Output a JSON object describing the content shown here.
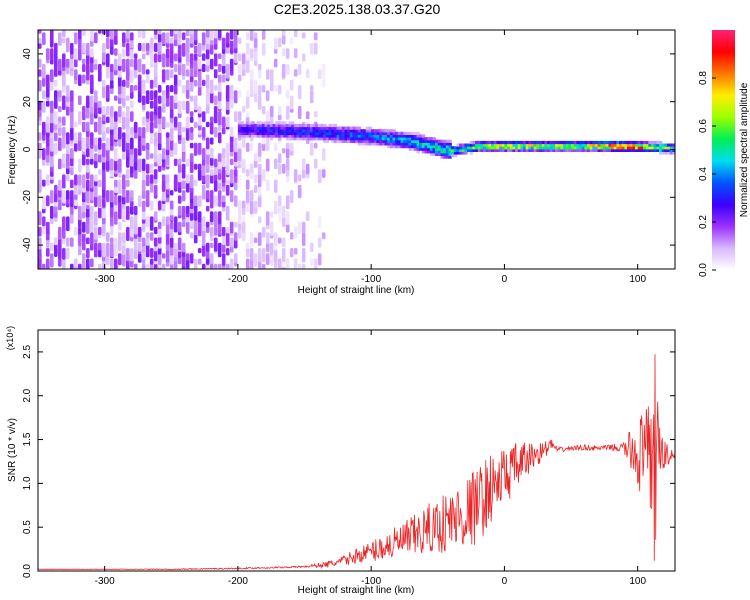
{
  "title": "C2E3.2025.138.03.37.G20",
  "chart_data": [
    {
      "type": "heatmap",
      "xlabel": "Height of straight line (km)",
      "ylabel": "Frequency (Hz)",
      "xlim": [
        -350,
        128
      ],
      "ylim": [
        -50,
        50
      ],
      "x_ticks": [
        -300,
        -200,
        -100,
        0,
        100
      ],
      "x_tick_labels": [
        "-300",
        "-200",
        "-100",
        "0",
        "100"
      ],
      "y_ticks": [
        -40,
        -20,
        0,
        20,
        40
      ],
      "y_tick_labels": [
        "-40",
        "-20",
        "0",
        "20",
        "40"
      ],
      "colorbar": {
        "label": "Normalized spectral amplitude",
        "range": [
          0,
          1
        ],
        "ticks": [
          0.0,
          0.2,
          0.4,
          0.6,
          0.8
        ],
        "tick_labels": [
          "0.0",
          "0.2",
          "0.4",
          "0.6",
          "0.8"
        ],
        "colors": [
          "#ffffff",
          "#d8b8ff",
          "#9b30ff",
          "#3a00ff",
          "#0055ff",
          "#00ddee",
          "#00ee55",
          "#9cff00",
          "#ffee00",
          "#ff7700",
          "#ff0000",
          "#ff2277"
        ]
      },
      "regions": [
        {
          "x": [
            -350,
            -200
          ],
          "freq": [
            -50,
            50
          ],
          "amplitude": [
            0.05,
            0.22
          ]
        },
        {
          "x": [
            -200,
            -135
          ],
          "freq": [
            -50,
            50
          ],
          "amplitude": [
            0.02,
            0.12
          ]
        },
        {
          "x": [
            -200,
            -40
          ],
          "freq": [
            -8,
            14
          ],
          "amplitude": [
            0.2,
            0.55
          ]
        },
        {
          "x": [
            -40,
            128
          ],
          "freq": [
            -3,
            4
          ],
          "amplitude": [
            0.3,
            1.0
          ]
        }
      ],
      "ridge": {
        "x": [
          -200,
          -150,
          -100,
          -70,
          -50,
          -40,
          -30,
          -20,
          0,
          50,
          90,
          128
        ],
        "freq": [
          8,
          7,
          5,
          3,
          0,
          -1,
          0,
          1,
          1,
          1,
          1,
          0
        ]
      },
      "ridge_amplitude": {
        "x": [
          -200,
          -100,
          -60,
          -30,
          0,
          60,
          80,
          100,
          110,
          128
        ],
        "amplitude": [
          0.3,
          0.4,
          0.5,
          0.6,
          0.75,
          0.7,
          0.95,
          0.95,
          0.7,
          0.6
        ]
      }
    },
    {
      "type": "line",
      "xlabel": "Height of straight line (km)",
      "ylabel": "SNR (10 * v/v)",
      "yscale_label": "(x10⁴)",
      "xlim": [
        -350,
        128
      ],
      "ylim": [
        0,
        2.75
      ],
      "x_ticks": [
        -300,
        -200,
        -100,
        0,
        100
      ],
      "x_tick_labels": [
        "-300",
        "-200",
        "-100",
        "0",
        "100"
      ],
      "y_ticks": [
        0.0,
        0.5,
        1.0,
        1.5,
        2.0,
        2.5
      ],
      "y_tick_labels": [
        "0.0",
        "0.5",
        "1.0",
        "1.5",
        "2.0",
        "2.5"
      ],
      "series": [
        {
          "color": "#ee2222",
          "x": [
            -350,
            -300,
            -250,
            -200,
            -170,
            -150,
            -130,
            -120,
            -110,
            -100,
            -90,
            -80,
            -70,
            -60,
            -50,
            -40,
            -30,
            -20,
            -15,
            -10,
            -5,
            0,
            10,
            20,
            30,
            35,
            40,
            50,
            60,
            70,
            80,
            90,
            95,
            100,
            105,
            110,
            113,
            116,
            120,
            128
          ],
          "y": [
            0.02,
            0.02,
            0.02,
            0.03,
            0.04,
            0.05,
            0.08,
            0.12,
            0.18,
            0.22,
            0.28,
            0.32,
            0.38,
            0.45,
            0.52,
            0.58,
            0.65,
            0.75,
            0.85,
            0.95,
            1.0,
            1.08,
            1.2,
            1.3,
            1.38,
            1.45,
            1.38,
            1.4,
            1.41,
            1.4,
            1.41,
            1.4,
            1.38,
            1.35,
            1.3,
            1.2,
            1.3,
            1.35,
            1.32,
            1.33
          ],
          "noise_envelope": {
            "x": [
              -350,
              -150,
              -120,
              -100,
              -80,
              -60,
              -40,
              -20,
              0,
              20,
              30,
              40,
              80,
              90,
              95,
              100,
              105,
              110,
              113,
              116,
              128
            ],
            "amplitude": [
              0.0,
              0.01,
              0.06,
              0.12,
              0.2,
              0.28,
              0.38,
              0.45,
              0.35,
              0.18,
              0.1,
              0.03,
              0.03,
              0.08,
              0.25,
              0.45,
              0.55,
              0.75,
              1.25,
              0.3,
              0.03
            ]
          }
        }
      ]
    }
  ]
}
